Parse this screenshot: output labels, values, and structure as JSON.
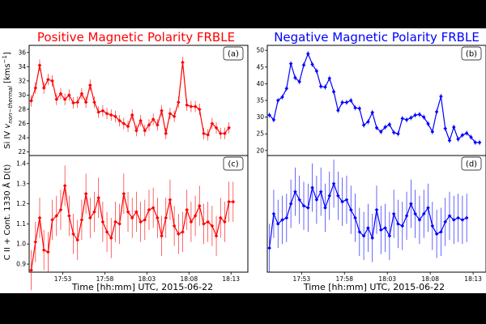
{
  "colors": {
    "positive": "#ff0000",
    "negative": "#0000ff",
    "background": "#ffffff",
    "frame": "#000000"
  },
  "titles": {
    "left": "Positive Magnetic Polarity FRBLE",
    "right": "Negative Magnetic Polarity FRBLE"
  },
  "xlabel": "Time [hh:mm] UTC, 2015-06-22",
  "ylabels": {
    "top": "Si IV v_non-thermal [kms^-1]",
    "top_main": "Si IV ",
    "top_v": "v",
    "top_sub": "non−thermal",
    "top_units": " [kms",
    "top_sup": "−1",
    "top_close": "]",
    "bottom": "C II + Cont. 1330 Å D(t)"
  },
  "x_ticks": [
    "17:53",
    "17:58",
    "18:03",
    "18:08",
    "18:13"
  ],
  "chart_data": [
    {
      "panel": "(a)",
      "type": "line",
      "color": "#ff0000",
      "marker": "diamond",
      "ylim": [
        21.5,
        37
      ],
      "yticks": [
        22,
        24,
        26,
        28,
        30,
        32,
        34,
        36
      ],
      "xlim": [
        -0.5,
        51.5
      ],
      "series": [
        {
          "name": "Si IV non-thermal velocity (positive)",
          "values": [
            29.2,
            31.0,
            34.2,
            31.0,
            32.2,
            32.0,
            29.4,
            30.2,
            29.4,
            30.0,
            28.9,
            29.0,
            30.2,
            29.0,
            31.4,
            29.0,
            27.6,
            27.8,
            27.4,
            27.2,
            27.0,
            26.4,
            26.0,
            25.6,
            27.2,
            25.0,
            26.4,
            25.0,
            25.8,
            26.6,
            25.8,
            27.8,
            24.6,
            27.4,
            27.0,
            29.0,
            34.6,
            28.6,
            28.4,
            28.4,
            28.0,
            24.6,
            24.4,
            26.0,
            25.4,
            24.6,
            24.6,
            25.4
          ],
          "errors": [
            0.8,
            0.8,
            0.8,
            0.8,
            0.8,
            0.8,
            0.8,
            0.8,
            0.8,
            0.8,
            0.8,
            0.8,
            0.8,
            0.8,
            0.8,
            0.8,
            0.8,
            0.8,
            0.8,
            0.8,
            0.8,
            0.8,
            0.8,
            0.8,
            0.8,
            0.8,
            0.8,
            0.8,
            0.8,
            0.8,
            0.8,
            0.8,
            0.8,
            0.8,
            0.8,
            0.8,
            0.8,
            0.8,
            0.8,
            0.8,
            0.8,
            0.8,
            0.8,
            0.8,
            0.8,
            0.8,
            0.8,
            0.8
          ]
        }
      ]
    },
    {
      "panel": "(b)",
      "type": "line",
      "color": "#0000ff",
      "marker": "diamond",
      "ylim": [
        18.5,
        51.5
      ],
      "yticks": [
        20,
        25,
        30,
        35,
        40,
        45,
        50
      ],
      "xlim": [
        -0.5,
        50.5
      ],
      "series": [
        {
          "name": "Si IV non-thermal velocity (negative)",
          "values": [
            30.6,
            29.2,
            35.0,
            36.0,
            38.6,
            46.0,
            41.8,
            40.6,
            45.6,
            49.0,
            45.8,
            43.8,
            39.2,
            39.0,
            41.6,
            37.6,
            32.0,
            34.4,
            34.4,
            35.0,
            32.8,
            32.6,
            27.6,
            28.6,
            31.4,
            26.8,
            25.6,
            27.0,
            27.8,
            25.4,
            25.0,
            29.6,
            29.2,
            29.8,
            30.6,
            30.8,
            30.0,
            28.0,
            25.6,
            31.6,
            36.2,
            26.6,
            23.0,
            27.0,
            23.4,
            24.6,
            25.2,
            24.0,
            22.4,
            22.4
          ],
          "errors": [
            0.8,
            0.8,
            0.8,
            0.8,
            0.8,
            0.8,
            0.8,
            0.8,
            0.8,
            0.8,
            0.8,
            0.8,
            0.8,
            0.8,
            0.8,
            0.8,
            0.8,
            0.8,
            0.8,
            0.8,
            0.8,
            0.8,
            0.8,
            0.8,
            0.8,
            0.8,
            0.8,
            0.8,
            0.8,
            0.8,
            0.8,
            0.8,
            0.8,
            0.8,
            0.8,
            0.8,
            0.8,
            0.8,
            0.8,
            0.8,
            0.8,
            0.8,
            0.8,
            0.8,
            0.8,
            0.8,
            0.8,
            0.8,
            0.8,
            0.8
          ]
        }
      ]
    },
    {
      "panel": "(c)",
      "type": "line",
      "color": "#ff0000",
      "marker": "diamond",
      "ylim": [
        0.86,
        1.44
      ],
      "yticks": [
        0.9,
        1.0,
        1.1,
        1.2,
        1.3,
        1.4
      ],
      "xlim": [
        -0.5,
        51.5
      ],
      "series": [
        {
          "name": "C II + Cont. 1330 A D(t) (positive)",
          "values": [
            0.87,
            1.01,
            1.13,
            0.97,
            0.96,
            1.12,
            1.14,
            1.17,
            1.29,
            1.14,
            1.05,
            1.02,
            1.12,
            1.25,
            1.13,
            1.16,
            1.23,
            1.11,
            1.06,
            1.03,
            1.11,
            1.1,
            1.25,
            1.16,
            1.13,
            1.16,
            1.11,
            1.12,
            1.17,
            1.18,
            1.13,
            1.04,
            1.13,
            1.22,
            1.09,
            1.05,
            1.06,
            1.17,
            1.11,
            1.14,
            1.19,
            1.1,
            1.11,
            1.09,
            1.04,
            1.13,
            1.11,
            1.21,
            1.21
          ],
          "errors": [
            0.1,
            0.1,
            0.1,
            0.1,
            0.1,
            0.1,
            0.1,
            0.1,
            0.1,
            0.1,
            0.1,
            0.1,
            0.1,
            0.1,
            0.1,
            0.1,
            0.1,
            0.1,
            0.1,
            0.1,
            0.1,
            0.1,
            0.1,
            0.1,
            0.1,
            0.1,
            0.1,
            0.1,
            0.1,
            0.1,
            0.1,
            0.1,
            0.1,
            0.1,
            0.1,
            0.1,
            0.1,
            0.1,
            0.1,
            0.1,
            0.1,
            0.1,
            0.1,
            0.1,
            0.1,
            0.1,
            0.1,
            0.1,
            0.1
          ]
        }
      ]
    },
    {
      "panel": "(d)",
      "type": "line",
      "color": "#0000ff",
      "marker": "diamond",
      "ylim": [
        0.86,
        1.44
      ],
      "yticks": [],
      "xlim": [
        -0.5,
        50.5
      ],
      "series": [
        {
          "name": "C II + Cont. 1330 A D(t) (negative)",
          "values": [
            0.98,
            1.15,
            1.1,
            1.12,
            1.13,
            1.2,
            1.26,
            1.22,
            1.19,
            1.18,
            1.28,
            1.22,
            1.26,
            1.18,
            1.24,
            1.3,
            1.24,
            1.21,
            1.22,
            1.17,
            1.13,
            1.06,
            1.04,
            1.08,
            1.03,
            1.17,
            1.07,
            1.08,
            1.04,
            1.15,
            1.1,
            1.09,
            1.14,
            1.2,
            1.15,
            1.12,
            1.15,
            1.18,
            1.09,
            1.05,
            1.06,
            1.11,
            1.14,
            1.12,
            1.13,
            1.12,
            1.13
          ],
          "errors": [
            0.12,
            0.12,
            0.12,
            0.12,
            0.12,
            0.12,
            0.12,
            0.12,
            0.12,
            0.12,
            0.12,
            0.12,
            0.12,
            0.12,
            0.12,
            0.12,
            0.12,
            0.12,
            0.12,
            0.12,
            0.12,
            0.12,
            0.12,
            0.12,
            0.12,
            0.12,
            0.12,
            0.12,
            0.12,
            0.12,
            0.12,
            0.12,
            0.12,
            0.12,
            0.12,
            0.12,
            0.12,
            0.12,
            0.12,
            0.12,
            0.12,
            0.12,
            0.12,
            0.12,
            0.12,
            0.12,
            0.12
          ]
        }
      ]
    }
  ],
  "x_tick_positions": [
    7.5,
    17.5,
    27.5,
    37.5,
    47.5
  ]
}
